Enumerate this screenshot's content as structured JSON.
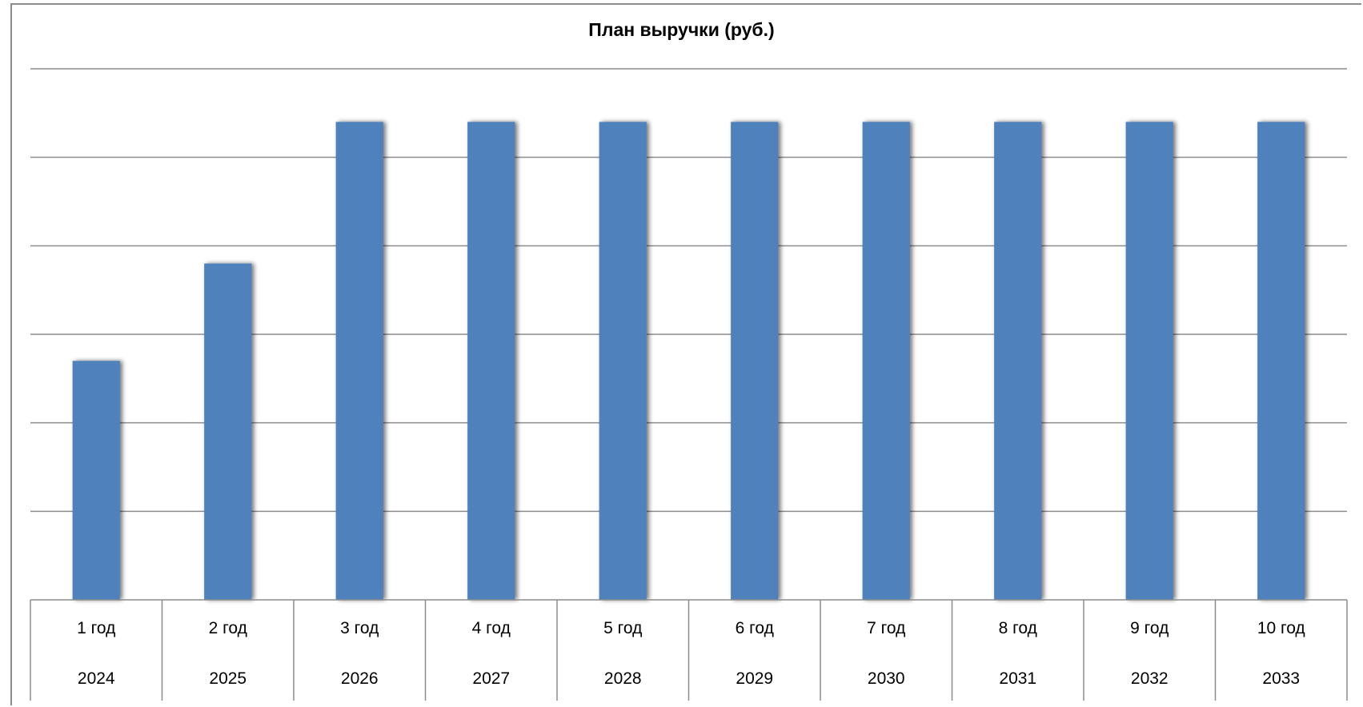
{
  "chart_data": {
    "type": "bar",
    "title": "План выручки (руб.)",
    "xlabel": "",
    "ylabel": "",
    "categories": [
      "1 год",
      "2 год",
      "3 год",
      "4 год",
      "5 год",
      "6 год",
      "7 год",
      "8 год",
      "9 год",
      "10 год"
    ],
    "categories_years": [
      "2024",
      "2025",
      "2026",
      "2027",
      "2028",
      "2029",
      "2030",
      "2031",
      "2032",
      "2033"
    ],
    "values": [
      2.7,
      3.8,
      5.4,
      5.4,
      5.4,
      5.4,
      5.4,
      5.4,
      5.4,
      5.4
    ],
    "ylim": [
      0,
      6
    ],
    "grid": true,
    "y_tick_labels_visible": false,
    "legend": "none",
    "bar_color": "#4f81bd"
  }
}
